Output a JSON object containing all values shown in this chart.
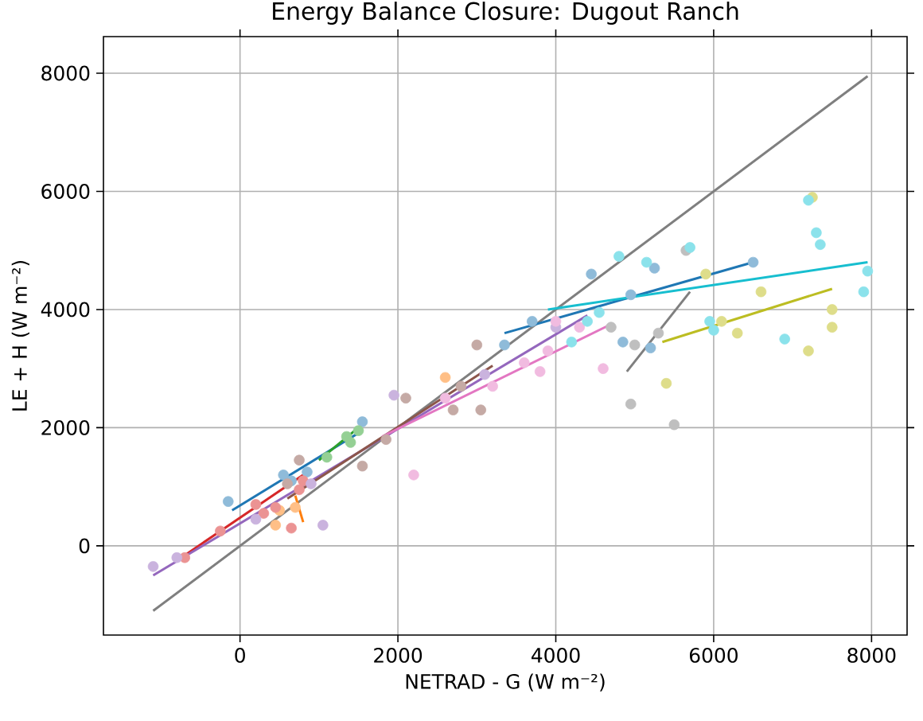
{
  "chart_data": {
    "type": "scatter",
    "title": "Energy Balance Closure: Dugout Ranch",
    "xlabel": "NETRAD - G (W m⁻²)",
    "ylabel": "LE + H (W m⁻²)",
    "xlim": [
      -1730,
      8450
    ],
    "ylim": [
      -1510,
      8620
    ],
    "xticks": [
      0,
      2000,
      4000,
      6000,
      8000
    ],
    "yticks": [
      0,
      2000,
      4000,
      6000,
      8000
    ],
    "grid": true,
    "series": [
      {
        "type": "line",
        "marker": "none",
        "color": "#7f7f7f",
        "x": [
          -1100,
          7950
        ],
        "values": [
          -1100,
          7950
        ]
      },
      {
        "type": "scatter",
        "marker": "circle",
        "color": "#8fbbd9",
        "x": [
          -150,
          550,
          650,
          850,
          1550,
          3350,
          3700,
          4450,
          4850,
          4950,
          5200,
          5250,
          6500
        ],
        "values": [
          750,
          1200,
          1100,
          1250,
          2100,
          3400,
          3800,
          4600,
          3450,
          4250,
          3350,
          4700,
          4800
        ]
      },
      {
        "type": "line",
        "marker": "none",
        "color": "#1f77b4",
        "x": [
          -100,
          1550
        ],
        "values": [
          600,
          1950
        ]
      },
      {
        "type": "line",
        "marker": "none",
        "color": "#1f77b4",
        "x": [
          3350,
          6500
        ],
        "values": [
          3600,
          4800
        ]
      },
      {
        "type": "scatter",
        "marker": "circle",
        "color": "#ffbf86",
        "x": [
          450,
          500,
          700,
          2600
        ],
        "values": [
          350,
          600,
          650,
          2850
        ]
      },
      {
        "type": "line",
        "marker": "none",
        "color": "#ff7f0e",
        "x": [
          700,
          800
        ],
        "values": [
          850,
          400
        ]
      },
      {
        "type": "scatter",
        "marker": "circle",
        "color": "#94d094",
        "x": [
          1100,
          1350,
          1400,
          1500
        ],
        "values": [
          1500,
          1850,
          1750,
          1950
        ]
      },
      {
        "type": "line",
        "marker": "none",
        "color": "#2ca02c",
        "x": [
          1000,
          1500
        ],
        "values": [
          1450,
          2000
        ]
      },
      {
        "type": "scatter",
        "marker": "circle",
        "color": "#eb9393",
        "x": [
          -700,
          -250,
          200,
          300,
          450,
          650,
          750,
          800
        ],
        "values": [
          -200,
          250,
          700,
          550,
          650,
          300,
          950,
          1100
        ]
      },
      {
        "type": "line",
        "marker": "none",
        "color": "#d62728",
        "x": [
          -800,
          800
        ],
        "values": [
          -250,
          1200
        ]
      },
      {
        "type": "scatter",
        "marker": "circle",
        "color": "#cab3de",
        "x": [
          -1100,
          -800,
          200,
          900,
          1050,
          1950,
          3100,
          4000
        ],
        "values": [
          -350,
          -200,
          450,
          1050,
          350,
          2550,
          2900,
          3700
        ]
      },
      {
        "type": "line",
        "marker": "none",
        "color": "#9467bd",
        "x": [
          -1100,
          4400
        ],
        "values": [
          -500,
          3900
        ]
      },
      {
        "type": "scatter",
        "marker": "circle",
        "color": "#c5aaa5",
        "x": [
          600,
          750,
          1550,
          1850,
          2100,
          2700,
          2800,
          3000,
          3050
        ],
        "values": [
          1050,
          1450,
          1350,
          1800,
          2500,
          2300,
          2700,
          3400,
          2300
        ]
      },
      {
        "type": "line",
        "marker": "none",
        "color": "#8c564b",
        "x": [
          600,
          3200
        ],
        "values": [
          800,
          3050
        ]
      },
      {
        "type": "scatter",
        "marker": "circle",
        "color": "#f1bbe0",
        "x": [
          2200,
          2600,
          3200,
          3600,
          3800,
          3900,
          4000,
          4300,
          4600
        ],
        "values": [
          1200,
          2500,
          2700,
          3100,
          2950,
          3300,
          3800,
          3700,
          3000
        ]
      },
      {
        "type": "line",
        "marker": "none",
        "color": "#e377c2",
        "x": [
          1800,
          4700
        ],
        "values": [
          1850,
          3750
        ]
      },
      {
        "type": "scatter",
        "marker": "circle",
        "color": "#bfbfbf",
        "x": [
          4700,
          4950,
          5000,
          5300,
          5500,
          5650
        ],
        "values": [
          3700,
          2400,
          3400,
          3600,
          2050,
          5000
        ]
      },
      {
        "type": "line",
        "marker": "none",
        "color": "#7f7f7f",
        "x": [
          4900,
          5700
        ],
        "values": [
          2950,
          4300
        ]
      },
      {
        "type": "scatter",
        "marker": "circle",
        "color": "#dedd8a",
        "x": [
          5400,
          5900,
          6100,
          6300,
          6600,
          7200,
          7250,
          7500,
          7500
        ],
        "values": [
          2750,
          4600,
          3800,
          3600,
          4300,
          3300,
          5900,
          4000,
          3700
        ]
      },
      {
        "type": "line",
        "marker": "none",
        "color": "#bcbd22",
        "x": [
          5350,
          7500
        ],
        "values": [
          3450,
          4350
        ]
      },
      {
        "type": "scatter",
        "marker": "circle",
        "color": "#8be2eb",
        "x": [
          4200,
          4400,
          4550,
          4800,
          5150,
          5700,
          5950,
          6000,
          6900,
          7200,
          7300,
          7350,
          7900,
          7950
        ],
        "values": [
          3450,
          3800,
          3950,
          4900,
          4800,
          5050,
          3800,
          3650,
          3500,
          5850,
          5300,
          5100,
          4300,
          4650
        ]
      },
      {
        "type": "line",
        "marker": "none",
        "color": "#17becf",
        "x": [
          3900,
          7950
        ],
        "values": [
          4000,
          4800
        ]
      }
    ]
  }
}
